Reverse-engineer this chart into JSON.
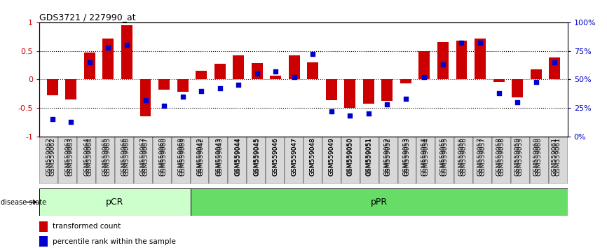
{
  "title": "GDS3721 / 227990_at",
  "samples": [
    "GSM559062",
    "GSM559063",
    "GSM559064",
    "GSM559065",
    "GSM559066",
    "GSM559067",
    "GSM559068",
    "GSM559069",
    "GSM559042",
    "GSM559043",
    "GSM559044",
    "GSM559045",
    "GSM559046",
    "GSM559047",
    "GSM559048",
    "GSM559049",
    "GSM559050",
    "GSM559051",
    "GSM559052",
    "GSM559053",
    "GSM559054",
    "GSM559055",
    "GSM559056",
    "GSM559057",
    "GSM559058",
    "GSM559059",
    "GSM559060",
    "GSM559061"
  ],
  "bar_values": [
    -0.28,
    -0.35,
    0.47,
    0.72,
    0.95,
    -0.65,
    -0.18,
    -0.22,
    0.15,
    0.27,
    0.42,
    0.28,
    0.06,
    0.42,
    0.3,
    -0.37,
    -0.5,
    -0.43,
    -0.38,
    -0.07,
    0.5,
    0.65,
    0.68,
    0.72,
    -0.05,
    -0.32,
    0.18,
    0.38
  ],
  "dot_values": [
    15,
    13,
    65,
    78,
    80,
    32,
    27,
    35,
    40,
    42,
    45,
    55,
    57,
    52,
    72,
    22,
    18,
    20,
    28,
    33,
    52,
    63,
    82,
    82,
    38,
    30,
    48,
    65
  ],
  "pCR_count": 8,
  "pPR_count": 20,
  "bar_color": "#cc0000",
  "dot_color": "#0000cc",
  "ylim": [
    -1.0,
    1.0
  ],
  "yticks_left": [
    -1,
    -0.5,
    0,
    0.5,
    1
  ],
  "ytick_labels_left": [
    "-1",
    "-0.5",
    "0",
    "0.5",
    "1"
  ],
  "yticks_right": [
    0,
    25,
    50,
    75,
    100
  ],
  "ytick_labels_right": [
    "0%",
    "25%",
    "50%",
    "75%",
    "100%"
  ],
  "hlines_dotted": [
    -0.5,
    0.5
  ],
  "pCR_color": "#ccffcc",
  "pPR_color": "#66dd66",
  "disease_state_label": "disease state",
  "legend_bar_label": "transformed count",
  "legend_dot_label": "percentile rank within the sample",
  "background_color": "#ffffff",
  "fig_width": 8.66,
  "fig_height": 3.54,
  "dpi": 100
}
